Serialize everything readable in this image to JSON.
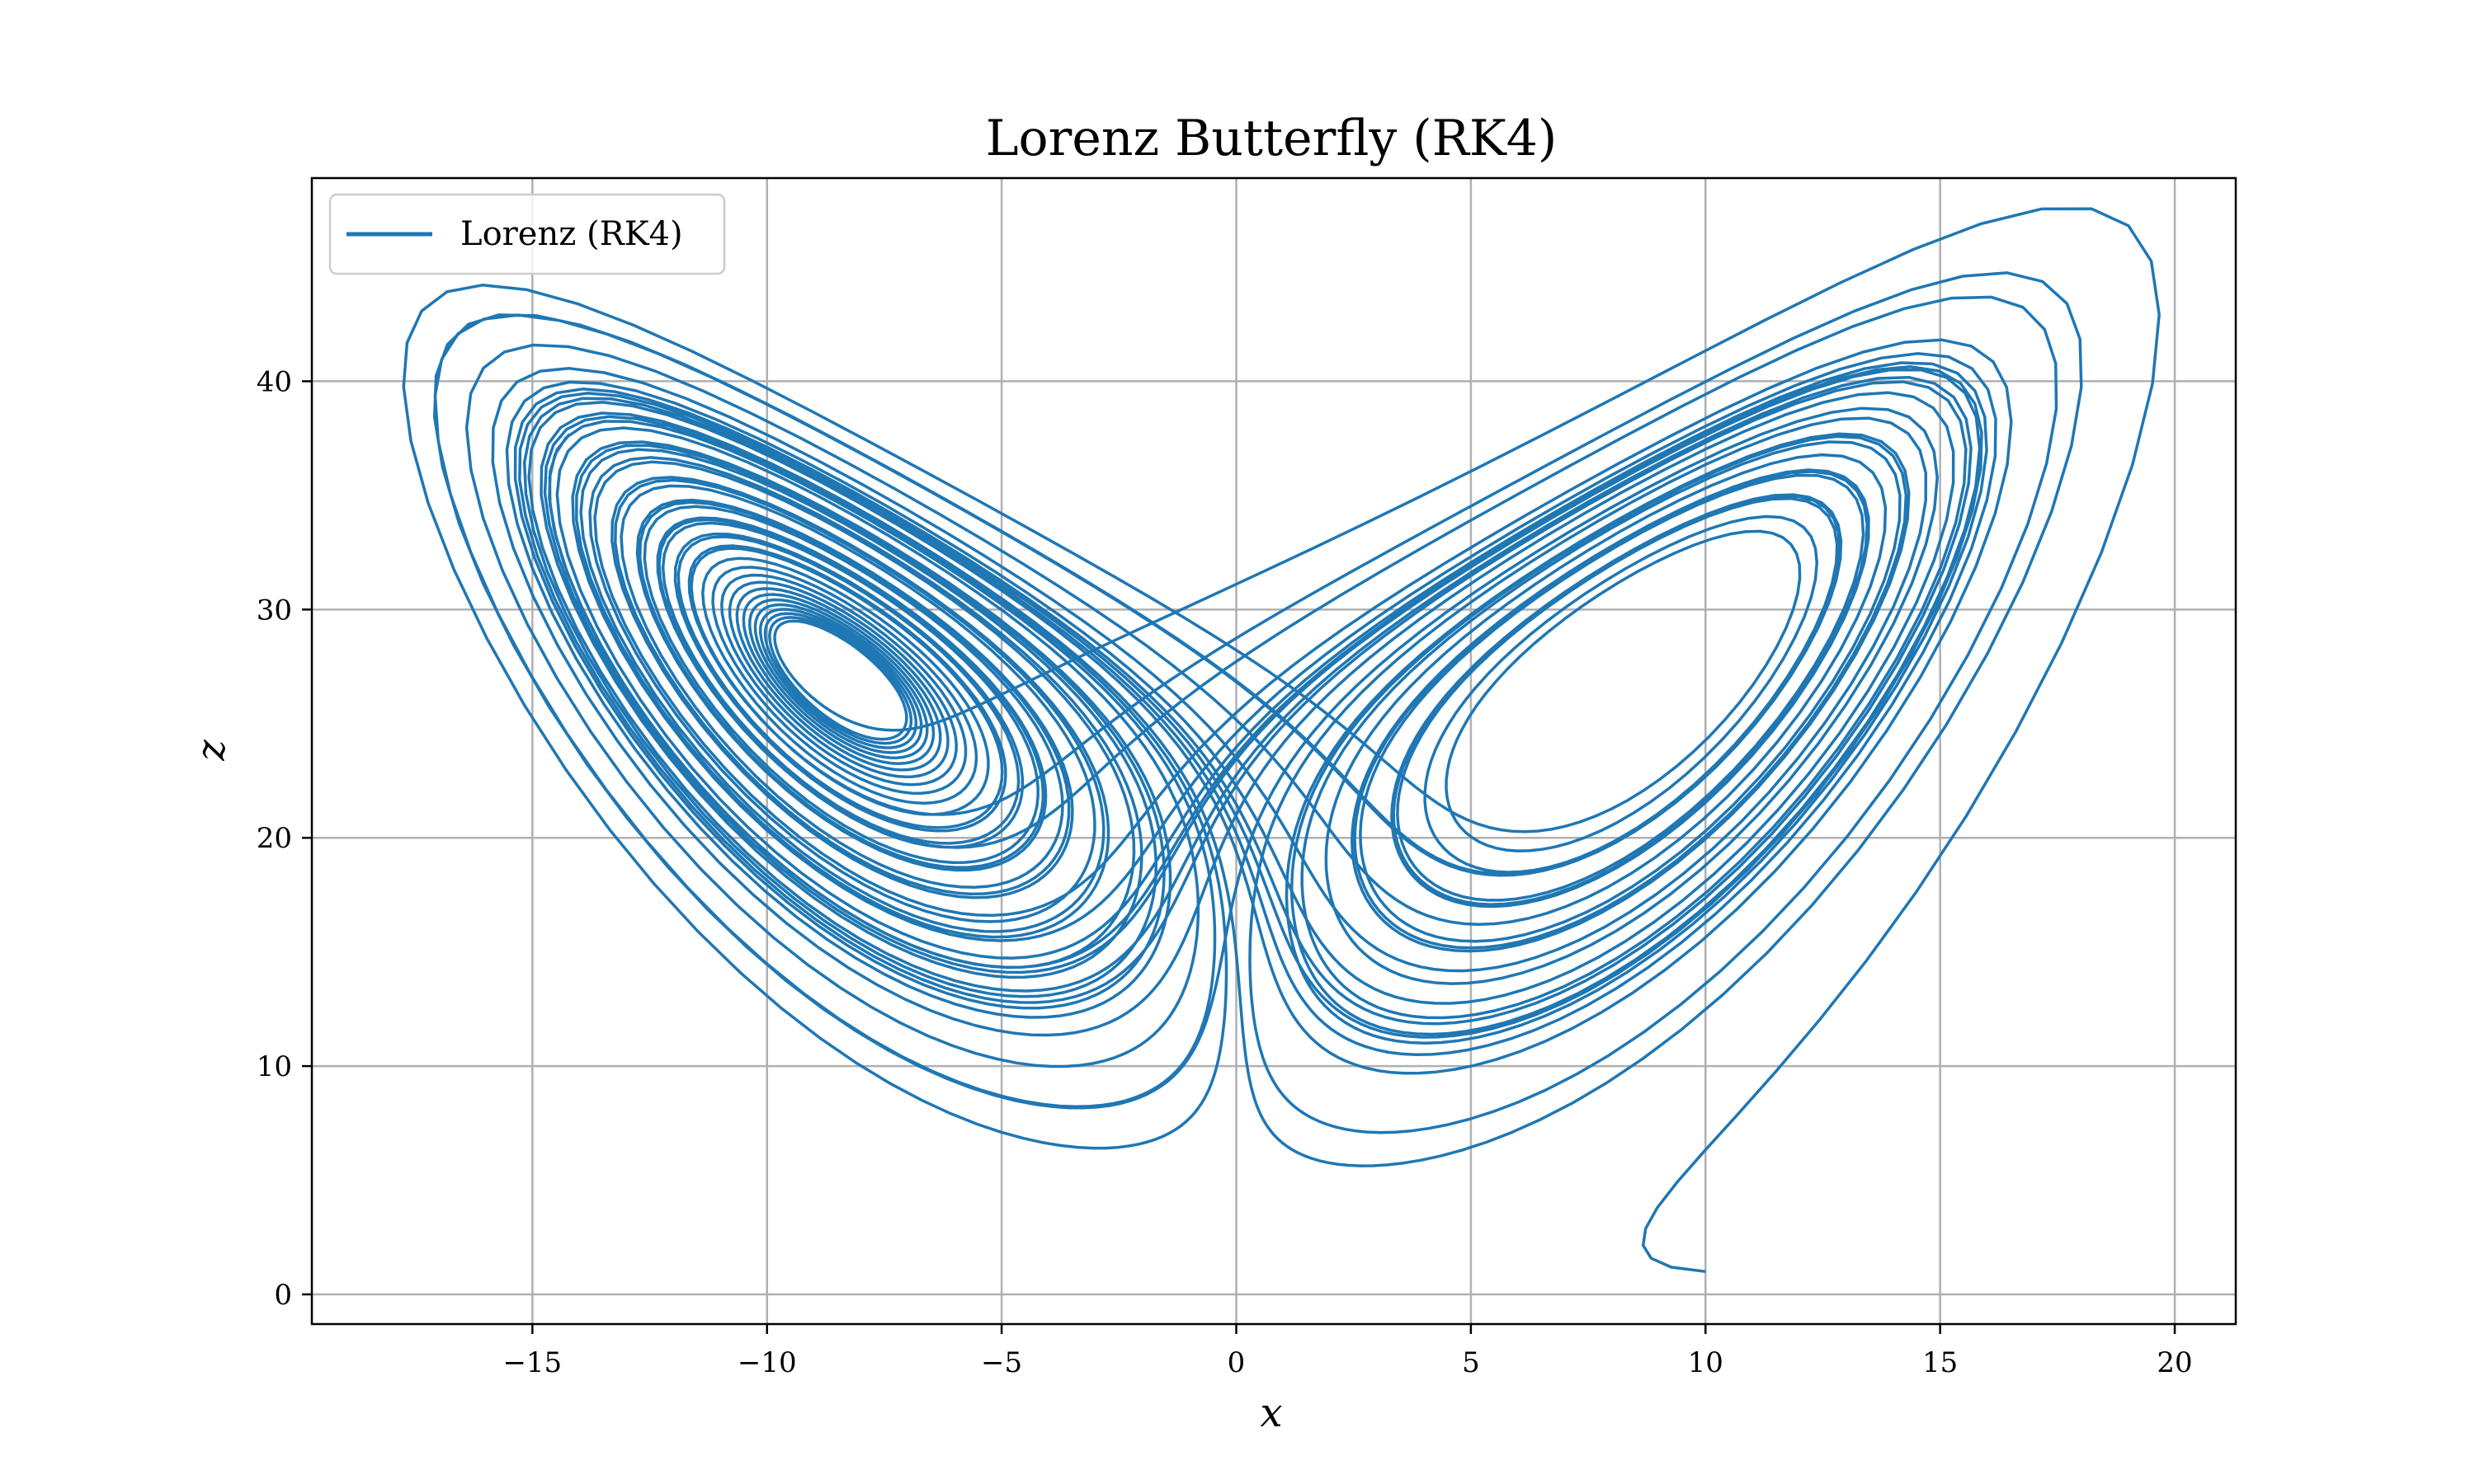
{
  "chart_data": {
    "type": "line",
    "title": "Lorenz Butterfly (RK4)",
    "xlabel": "x",
    "ylabel": "z",
    "xlim": [
      -19.7,
      21.3
    ],
    "ylim": [
      -1.3,
      48.9
    ],
    "xticks": [
      -15,
      -10,
      -5,
      0,
      5,
      10,
      15,
      20
    ],
    "xtick_labels": [
      "−15",
      "−10",
      "−5",
      "0",
      "5",
      "10",
      "15",
      "20"
    ],
    "yticks": [
      0,
      10,
      20,
      30,
      40
    ],
    "ytick_labels": [
      "0",
      "10",
      "20",
      "30",
      "40"
    ],
    "grid": true,
    "legend_position": "upper-left",
    "series": [
      {
        "name": "Lorenz (RK4)",
        "color": "#1f77b4",
        "x_start": 10.0,
        "z_start": 1.0,
        "x_range": [
          -17.9,
          19.4
        ],
        "z_range": [
          1.0,
          46.9
        ]
      }
    ],
    "line_color": "#1f77b4",
    "grid_color": "#b0b0b0"
  }
}
